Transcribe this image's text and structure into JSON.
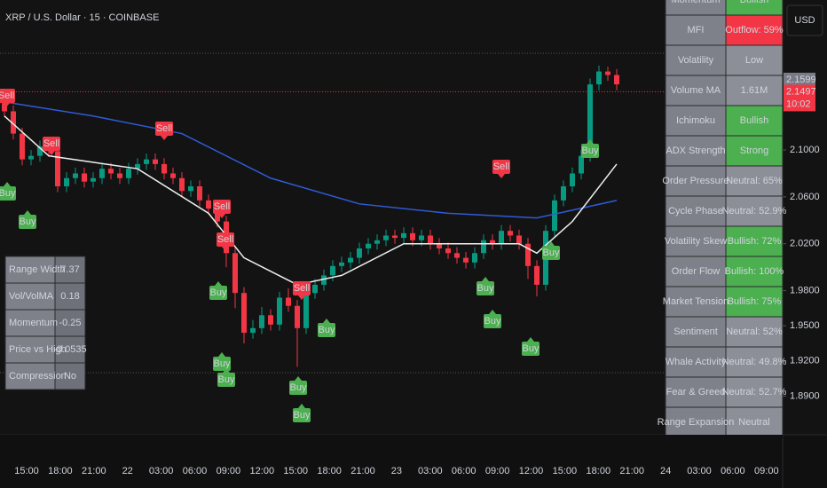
{
  "chart_data": {
    "type": "candlestick",
    "title": "XRP / U.S. Dollar · 15 · COINBASE",
    "currency_button": "USD",
    "up_color": "#089981",
    "down_color": "#f23645",
    "ylim": [
      1.857,
      2.228
    ],
    "yticks": [
      {
        "value": 2.1,
        "label": "2.1000"
      },
      {
        "value": 2.06,
        "label": "2.0600"
      },
      {
        "value": 2.02,
        "label": "2.0200"
      },
      {
        "value": 1.98,
        "label": "1.9800"
      },
      {
        "value": 1.95,
        "label": "1.9500"
      },
      {
        "value": 1.92,
        "label": "1.9200"
      },
      {
        "value": 1.89,
        "label": "1.8900"
      }
    ],
    "time_labels": [
      "15:00",
      "18:00",
      "21:00",
      "22",
      "03:00",
      "06:00",
      "09:00",
      "12:00",
      "15:00",
      "18:00",
      "21:00",
      "23",
      "03:00",
      "06:00",
      "09:00",
      "12:00",
      "15:00",
      "18:00",
      "21:00",
      "24",
      "03:00",
      "06:00",
      "09:00"
    ],
    "open": [
      2.14,
      2.133,
      2.114,
      2.092,
      2.095,
      2.103,
      2.099,
      2.069,
      2.076,
      2.08,
      2.073,
      2.076,
      2.084,
      2.08,
      2.076,
      2.084,
      2.088,
      2.092,
      2.088,
      2.08,
      2.076,
      2.065,
      2.069,
      2.057,
      2.05,
      2.039,
      2.012,
      1.978,
      1.944,
      1.948,
      1.959,
      1.951,
      1.974,
      1.967,
      1.948,
      1.978,
      1.985,
      1.993,
      2.001,
      2.004,
      2.008,
      2.016,
      2.02,
      2.023,
      2.027,
      2.025,
      2.029,
      2.023,
      2.027,
      2.02,
      2.016,
      2.012,
      2.008,
      2.004,
      2.012,
      2.023,
      2.02,
      2.031,
      2.027,
      2.02,
      2.001,
      1.985,
      2.031,
      2.057,
      2.069,
      2.08,
      2.095,
      2.156,
      2.167,
      2.164
    ],
    "high": [
      2.145,
      2.138,
      2.119,
      2.1,
      2.108,
      2.108,
      2.104,
      2.081,
      2.085,
      2.085,
      2.081,
      2.089,
      2.089,
      2.085,
      2.089,
      2.093,
      2.097,
      2.097,
      2.093,
      2.085,
      2.081,
      2.074,
      2.074,
      2.062,
      2.055,
      2.044,
      2.017,
      1.983,
      1.955,
      1.966,
      1.964,
      1.979,
      1.982,
      1.972,
      1.985,
      1.99,
      1.998,
      2.006,
      2.009,
      2.013,
      2.021,
      2.025,
      2.028,
      2.032,
      2.032,
      2.034,
      2.034,
      2.032,
      2.032,
      2.025,
      2.021,
      2.017,
      2.013,
      2.017,
      2.028,
      2.028,
      2.036,
      2.036,
      2.032,
      2.025,
      2.006,
      2.036,
      2.062,
      2.074,
      2.085,
      2.1,
      2.161,
      2.172,
      2.171,
      2.169
    ],
    "low": [
      2.128,
      2.109,
      2.087,
      2.087,
      2.09,
      2.094,
      2.064,
      2.064,
      2.071,
      2.068,
      2.068,
      2.071,
      2.075,
      2.071,
      2.071,
      2.079,
      2.083,
      2.083,
      2.075,
      2.071,
      2.06,
      2.06,
      2.052,
      2.045,
      2.034,
      2.0,
      1.965,
      1.935,
      1.939,
      1.943,
      1.946,
      1.946,
      1.962,
      1.915,
      1.943,
      1.973,
      1.98,
      1.988,
      1.996,
      1.999,
      2.003,
      2.011,
      2.015,
      2.018,
      2.02,
      2.02,
      2.018,
      2.018,
      2.015,
      2.011,
      2.007,
      2.003,
      1.999,
      1.999,
      2.007,
      2.015,
      2.015,
      2.022,
      2.015,
      1.99,
      1.975,
      1.98,
      2.026,
      2.052,
      2.064,
      2.075,
      2.09,
      2.151,
      2.159,
      2.151
    ],
    "close": [
      2.133,
      2.114,
      2.092,
      2.095,
      2.103,
      2.099,
      2.069,
      2.076,
      2.08,
      2.073,
      2.076,
      2.084,
      2.08,
      2.076,
      2.084,
      2.088,
      2.092,
      2.088,
      2.08,
      2.076,
      2.065,
      2.069,
      2.057,
      2.05,
      2.039,
      2.012,
      1.978,
      1.944,
      1.948,
      1.959,
      1.951,
      1.974,
      1.967,
      1.948,
      1.978,
      1.985,
      1.993,
      2.001,
      2.004,
      2.008,
      2.016,
      2.02,
      2.023,
      2.027,
      2.025,
      2.029,
      2.023,
      2.027,
      2.02,
      2.016,
      2.012,
      2.008,
      2.004,
      2.012,
      2.023,
      2.02,
      2.031,
      2.027,
      2.02,
      2.001,
      1.985,
      2.031,
      2.057,
      2.069,
      2.08,
      2.095,
      2.156,
      2.167,
      2.164,
      2.156
    ],
    "ma_lines": [
      {
        "color": "#2f5bd8",
        "x": [
          0,
          10,
          20,
          30,
          40,
          50,
          60,
          69
        ],
        "values": [
          2.141,
          2.129,
          2.114,
          2.076,
          2.054,
          2.046,
          2.042,
          2.057
        ]
      },
      {
        "color": "#f0f0f0",
        "x": [
          0,
          5,
          15,
          23,
          27,
          33,
          38,
          45,
          52,
          58,
          60,
          64,
          69
        ],
        "values": [
          2.129,
          2.095,
          2.084,
          2.046,
          2.008,
          1.985,
          1.993,
          2.02,
          2.02,
          2.02,
          2.012,
          2.039,
          2.088
        ]
      }
    ],
    "price_tags": [
      {
        "value": 2.1599,
        "color": "#787b86"
      },
      {
        "value": 2.1497,
        "color": "#f23645"
      }
    ],
    "countdown": "10:02",
    "signals": [
      "Sell",
      "Sell",
      "Sell",
      "Sell",
      "Sell",
      "Sell",
      "Sell",
      "Buy",
      "Buy",
      "Buy",
      "Buy",
      "Buy",
      "Buy",
      "Buy",
      "Buy",
      "Buy",
      "Buy",
      "Buy",
      "Buy",
      "Buy"
    ],
    "left_table": [
      [
        "Range Width",
        "7.37"
      ],
      [
        "Vol/VolMA",
        "0.18"
      ],
      [
        "Momentum",
        "-0.25"
      ],
      [
        "Price vs High",
        "-0.0535"
      ],
      [
        "Compression",
        "No"
      ]
    ],
    "right_table": [
      {
        "label": "Momentum",
        "value": "Bullish",
        "color": "#4caf50"
      },
      {
        "label": "MFI",
        "value": "Outflow: 59%",
        "color": "#f23645"
      },
      {
        "label": "Volatility",
        "value": "Low",
        "color": "#8c8f98"
      },
      {
        "label": "Volume MA",
        "value": "1.61M",
        "color": "#8c8f98"
      },
      {
        "label": "Ichimoku",
        "value": "Bullish",
        "color": "#4caf50"
      },
      {
        "label": "ADX Strength",
        "value": "Strong",
        "color": "#4caf50"
      },
      {
        "label": "Order Pressure",
        "value": "Neutral: 65%",
        "color": "#8c8f98"
      },
      {
        "label": "Cycle Phase",
        "value": "Neutral: 52.9%",
        "color": "#8c8f98"
      },
      {
        "label": "Volatility Skew",
        "value": "Bullish: 72%",
        "color": "#4caf50"
      },
      {
        "label": "Order Flow",
        "value": "Bullish: 100%",
        "color": "#4caf50"
      },
      {
        "label": "Market Tension",
        "value": "Bullish: 75%",
        "color": "#4caf50"
      },
      {
        "label": "Sentiment",
        "value": "Neutral: 52%",
        "color": "#8c8f98"
      },
      {
        "label": "Whale Activity",
        "value": "Neutral: 49.8%",
        "color": "#8c8f98"
      },
      {
        "label": "Fear & Greed",
        "value": "Neutral: 52.7%",
        "color": "#8c8f98"
      },
      {
        "label": "Range Expansion",
        "value": "Neutral",
        "color": "#8c8f98"
      }
    ]
  }
}
